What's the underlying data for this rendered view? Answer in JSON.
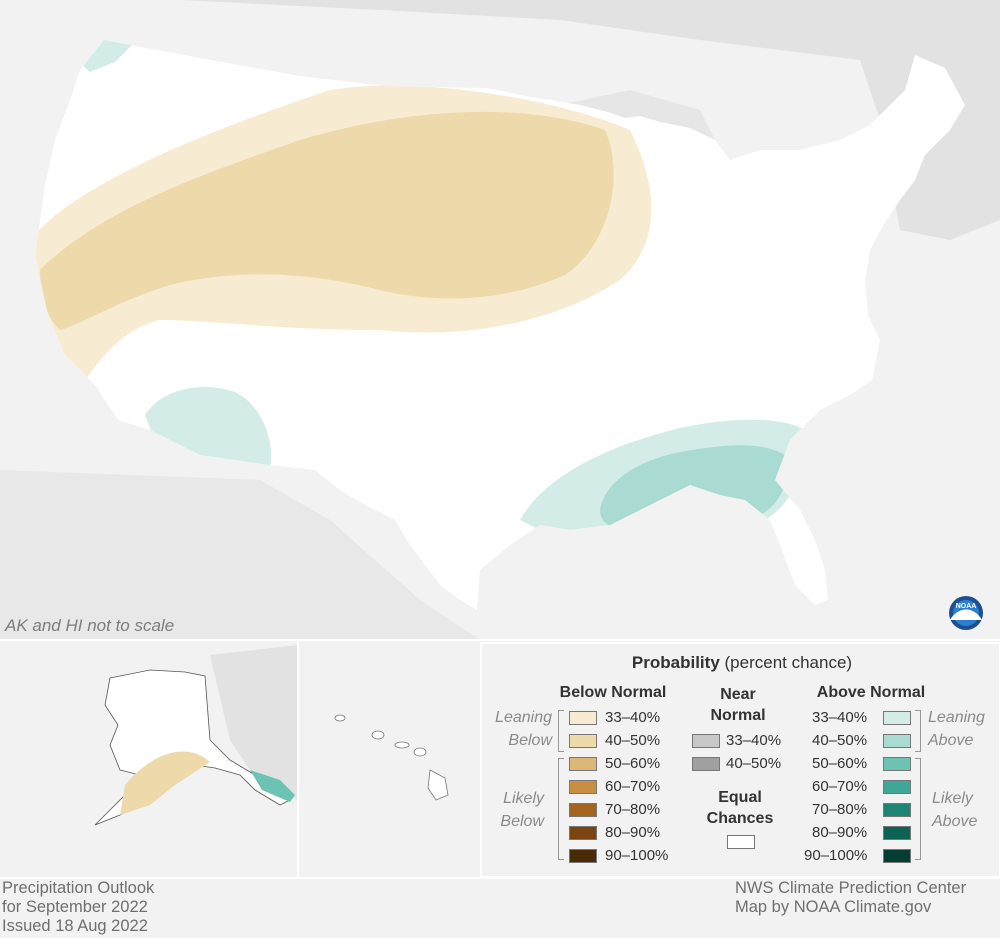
{
  "map": {
    "note": "AK and HI not to scale",
    "footer_left": [
      "Precipitation Outlook",
      "for September 2022",
      "Issued 18 Aug 2022"
    ],
    "footer_right": [
      "NWS Climate Prediction Center",
      "Map by NOAA Climate.gov"
    ],
    "logo_text": "NOAA"
  },
  "legend": {
    "title_bold": "Probability",
    "title_rest": " (percent chance)",
    "below_header": "Below Normal",
    "near_header": [
      "Near",
      "Normal"
    ],
    "above_header": "Above Normal",
    "equal_label": [
      "Equal",
      "Chances"
    ],
    "leaning_below": [
      "Leaning",
      "Below"
    ],
    "likely_below": [
      "Likely",
      "Below"
    ],
    "leaning_above": [
      "Leaning",
      "Above"
    ],
    "likely_above": [
      "Likely",
      "Above"
    ],
    "below_items": [
      {
        "label": "33–40%",
        "color": "#f7ecd1"
      },
      {
        "label": "40–50%",
        "color": "#eed9aa"
      },
      {
        "label": "50–60%",
        "color": "#dcb778"
      },
      {
        "label": "60–70%",
        "color": "#c88f43"
      },
      {
        "label": "70–80%",
        "color": "#a36420"
      },
      {
        "label": "80–90%",
        "color": "#7a4510"
      },
      {
        "label": "90–100%",
        "color": "#4a2906"
      }
    ],
    "near_items": [
      {
        "label": "33–40%",
        "color": "#c7c7c7"
      },
      {
        "label": "40–50%",
        "color": "#a0a0a0"
      }
    ],
    "above_items": [
      {
        "label": "33–40%",
        "color": "#d4ece8"
      },
      {
        "label": "40–50%",
        "color": "#a9dbd2"
      },
      {
        "label": "50–60%",
        "color": "#6cc3b4"
      },
      {
        "label": "60–70%",
        "color": "#3ea797"
      },
      {
        "label": "70–80%",
        "color": "#1d8574"
      },
      {
        "label": "80–90%",
        "color": "#0d6353"
      },
      {
        "label": "90–100%",
        "color": "#063d33"
      }
    ],
    "equal_color": "#ffffff"
  }
}
